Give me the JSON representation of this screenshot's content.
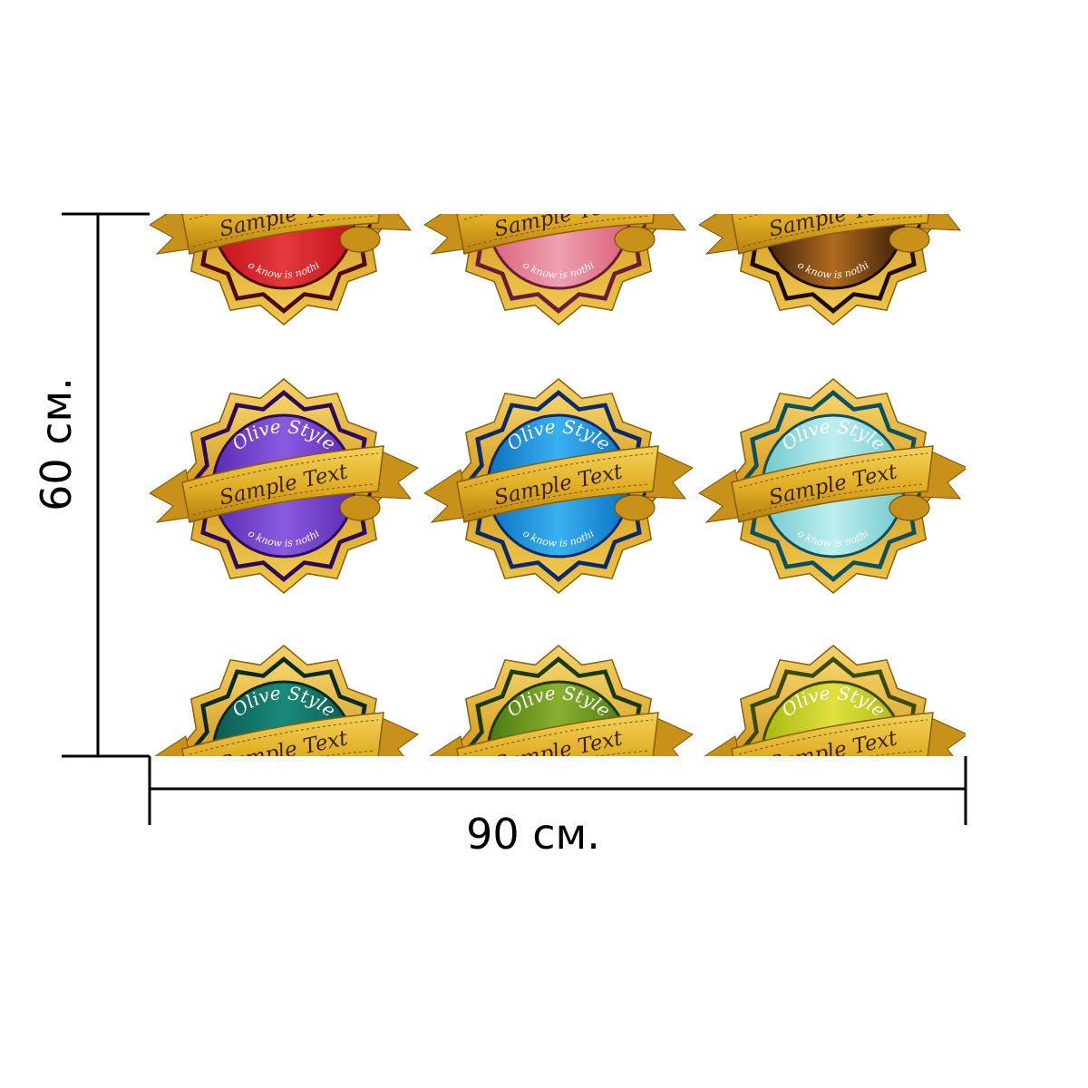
{
  "dimensions": {
    "height_label": "60 см.",
    "width_label": "90 см."
  },
  "badge_text": {
    "olive": "Olive Style",
    "sample": "Sample Text",
    "motto": "o know is nothi"
  },
  "colors": {
    "ribbon_gold": "#e8b92e",
    "ribbon_dark": "#a9770e",
    "rim_gold": "#d9a528"
  },
  "badges": [
    {
      "row": 1,
      "col": 1,
      "inner": "#c4101a",
      "inner_light": "#e23a3a",
      "ring": "#4a0a0a"
    },
    {
      "row": 1,
      "col": 2,
      "inner": "#d9607a",
      "inner_light": "#f0a0b0",
      "ring": "#6a1a3a"
    },
    {
      "row": 1,
      "col": 3,
      "inner": "#3a1e08",
      "inner_light": "#b06a20",
      "ring": "#1a0a00"
    },
    {
      "row": 2,
      "col": 1,
      "inner": "#5a2ab0",
      "inner_light": "#8a5ae0",
      "ring": "#2a0a5a"
    },
    {
      "row": 2,
      "col": 2,
      "inner": "#0a72c0",
      "inner_light": "#3ab0f0",
      "ring": "#0a2a6a"
    },
    {
      "row": 2,
      "col": 3,
      "inner": "#70c8cc",
      "inner_light": "#bfeff0",
      "ring": "#0a5060"
    },
    {
      "row": 3,
      "col": 1,
      "inner": "#0a5a52",
      "inner_light": "#1a8a7a",
      "ring": "#042a28"
    },
    {
      "row": 3,
      "col": 2,
      "inner": "#4a7a10",
      "inner_light": "#8ab030",
      "ring": "#1a3a04"
    },
    {
      "row": 3,
      "col": 3,
      "inner": "#a8b810",
      "inner_light": "#e0e040",
      "ring": "#3a4a04"
    }
  ]
}
